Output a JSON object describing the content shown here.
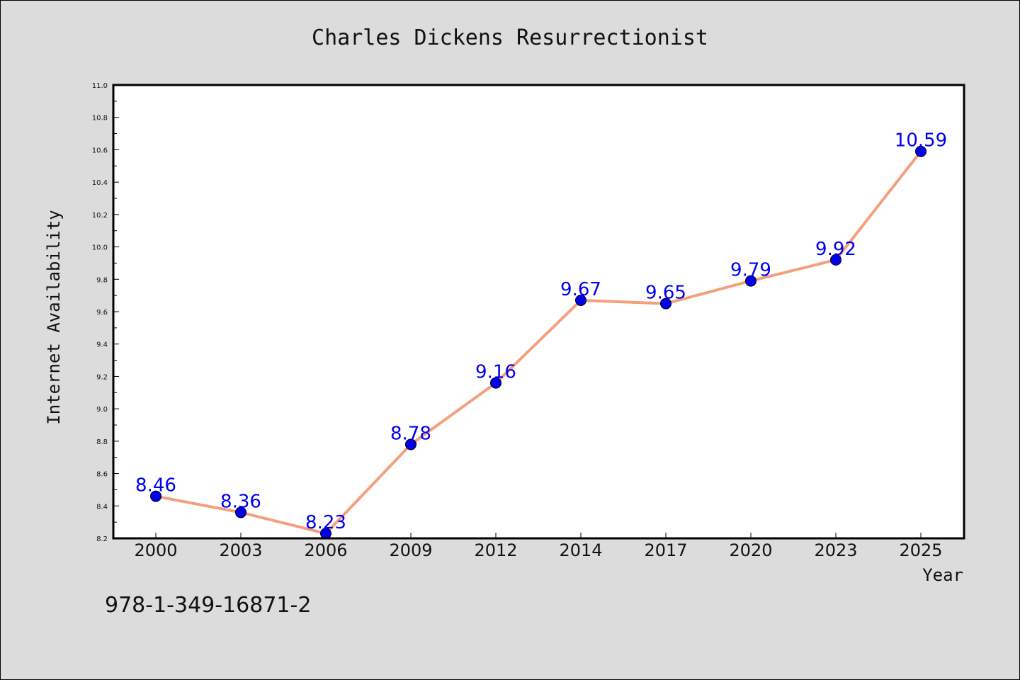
{
  "chart_data": {
    "type": "line",
    "title": "Charles Dickens Resurrectionist",
    "xlabel": "Year",
    "ylabel": "Internet Availability",
    "categories": [
      "2000",
      "2003",
      "2006",
      "2009",
      "2012",
      "2014",
      "2017",
      "2020",
      "2023",
      "2025"
    ],
    "series": [
      {
        "values": [
          8.46,
          8.36,
          8.23,
          8.78,
          9.16,
          9.67,
          9.65,
          9.79,
          9.92,
          10.59
        ],
        "labels": [
          "8.46",
          "8.36",
          "8.23",
          "8.78",
          "9.16",
          "9.67",
          "9.65",
          "9.79",
          "9.92",
          "10.59"
        ]
      }
    ],
    "ylim": [
      8.2,
      11.0
    ],
    "yticks": [
      "8.2",
      "8.4",
      "8.6",
      "8.8",
      "9.0",
      "9.2",
      "9.4",
      "9.6",
      "9.8",
      "10.0",
      "10.2",
      "10.4",
      "10.6",
      "10.8",
      "11.0"
    ],
    "grid": false,
    "colors": {
      "line": "#f4a07e",
      "marker": "#0000ee",
      "data_label": "#0000ee",
      "background": "#dcdcdc",
      "plot_area": "#ffffff"
    }
  },
  "annotation": "978-1-349-16871-2"
}
